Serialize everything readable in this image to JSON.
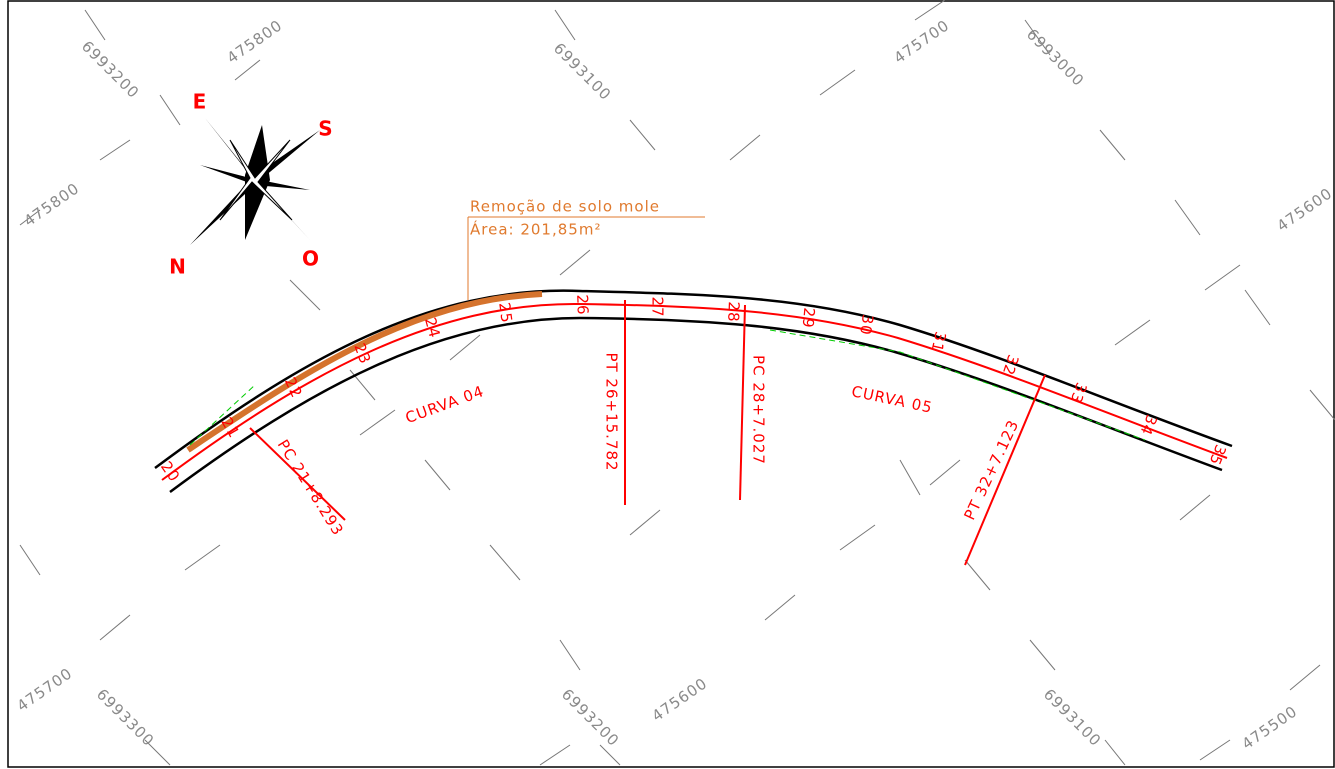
{
  "annotation": {
    "title": "Remoção de solo mole",
    "area": "Área: 201,85m²"
  },
  "compass": {
    "east": "E",
    "south": "S",
    "north": "N",
    "west": "O"
  },
  "curves": [
    "CURVA 04",
    "CURVA 05"
  ],
  "points": [
    "PC 21+8.293",
    "PT 26+15.782",
    "PC 28+7.027",
    "PT 32+7.123"
  ],
  "stations": [
    "20",
    "21",
    "22",
    "23",
    "24",
    "25",
    "26",
    "27",
    "28",
    "29",
    "30",
    "31",
    "32",
    "33",
    "34",
    "35"
  ],
  "grid_labels": [
    "6993200",
    "475800",
    "6993100",
    "475700",
    "6993000",
    "475800",
    "475600",
    "475700",
    "6993300",
    "6993200",
    "475600",
    "6993100",
    "475500"
  ]
}
